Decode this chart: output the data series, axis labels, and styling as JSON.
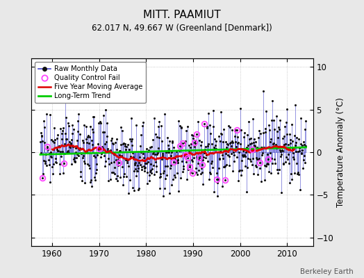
{
  "title": "MITT. PAAMIUT",
  "subtitle": "62.017 N, 49.667 W (Greenland [Denmark])",
  "ylabel": "Temperature Anomaly (°C)",
  "xlim": [
    1955.5,
    2015.5
  ],
  "ylim": [
    -11,
    11
  ],
  "yticks_right": [
    -10,
    -5,
    0,
    5,
    10
  ],
  "yticks_left": [
    -10,
    -5,
    0,
    5,
    10
  ],
  "xticks": [
    1960,
    1970,
    1980,
    1990,
    2000,
    2010
  ],
  "background_color": "#e8e8e8",
  "plot_bg_color": "#ffffff",
  "raw_line_color": "#4444cc",
  "raw_marker_color": "#111111",
  "qc_fail_color": "#ff44ff",
  "moving_avg_color": "#dd0000",
  "trend_color": "#00cc00",
  "watermark": "Berkeley Earth",
  "start_year": 1957.5,
  "end_year": 2014.0,
  "seed": 77
}
